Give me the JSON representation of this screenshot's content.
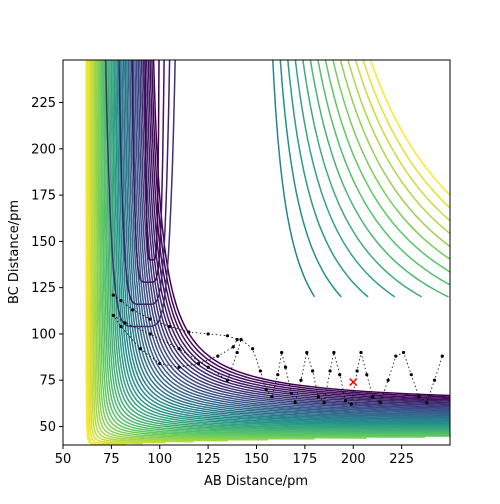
{
  "chart_data": {
    "type": "contour",
    "xlabel": "AB Distance/pm",
    "ylabel": "BC Distance/pm",
    "xlim": [
      50,
      250
    ],
    "ylim": [
      40,
      248
    ],
    "xticks": [
      50,
      75,
      100,
      125,
      150,
      175,
      200,
      225
    ],
    "yticks": [
      50,
      75,
      100,
      125,
      150,
      175,
      200,
      225
    ],
    "trajectory": {
      "color": "#000000",
      "x": [
        76,
        80,
        86,
        95,
        105,
        115,
        125,
        135,
        140,
        138,
        130,
        120,
        110,
        100,
        90,
        80,
        76,
        82,
        95,
        110,
        125,
        135,
        140,
        142,
        148,
        152,
        155,
        158,
        161,
        163,
        165,
        168,
        170,
        173,
        176,
        179,
        182,
        185,
        188,
        190,
        193,
        196,
        199,
        202,
        204,
        207,
        210,
        214,
        218,
        222,
        226,
        230,
        234,
        238,
        242,
        246
      ],
      "y": [
        121,
        118,
        113,
        108,
        104,
        101,
        100,
        99,
        97,
        93,
        88,
        84,
        82,
        84,
        92,
        104,
        110,
        106,
        100,
        92,
        82,
        75,
        90,
        97,
        92,
        80,
        70,
        66,
        78,
        90,
        82,
        68,
        63,
        75,
        90,
        80,
        66,
        63,
        80,
        90,
        78,
        64,
        62,
        80,
        90,
        78,
        66,
        63,
        75,
        88,
        90,
        78,
        66,
        63,
        75,
        88
      ]
    },
    "marker": {
      "x": 200,
      "y": 74,
      "color": "#ff0000"
    }
  }
}
